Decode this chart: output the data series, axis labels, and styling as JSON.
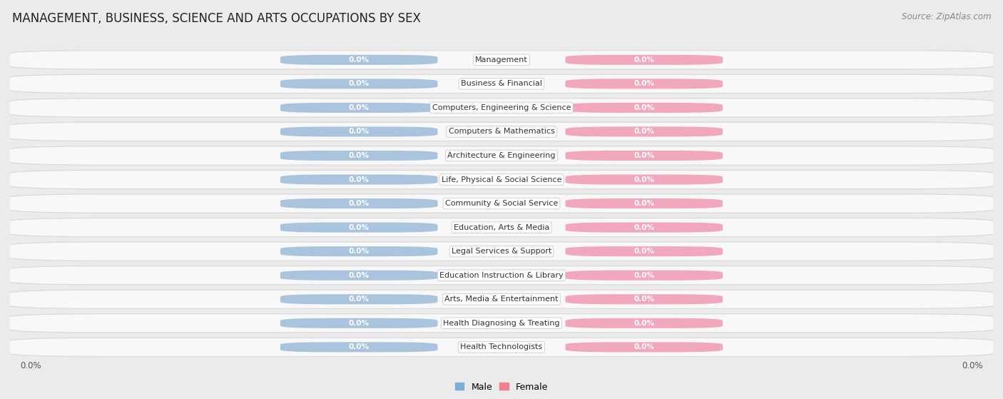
{
  "title": "MANAGEMENT, BUSINESS, SCIENCE AND ARTS OCCUPATIONS BY SEX",
  "source": "Source: ZipAtlas.com",
  "categories": [
    "Management",
    "Business & Financial",
    "Computers, Engineering & Science",
    "Computers & Mathematics",
    "Architecture & Engineering",
    "Life, Physical & Social Science",
    "Community & Social Service",
    "Education, Arts & Media",
    "Legal Services & Support",
    "Education Instruction & Library",
    "Arts, Media & Entertainment",
    "Health Diagnosing & Treating",
    "Health Technologists"
  ],
  "male_values": [
    0.0,
    0.0,
    0.0,
    0.0,
    0.0,
    0.0,
    0.0,
    0.0,
    0.0,
    0.0,
    0.0,
    0.0,
    0.0
  ],
  "female_values": [
    0.0,
    0.0,
    0.0,
    0.0,
    0.0,
    0.0,
    0.0,
    0.0,
    0.0,
    0.0,
    0.0,
    0.0,
    0.0
  ],
  "male_color": "#aac4de",
  "female_color": "#f2a8bc",
  "background_color": "#ebebeb",
  "row_bg_color": "#f8f8f8",
  "row_edge_color": "#d8d8d8",
  "title_fontsize": 12,
  "source_fontsize": 8.5,
  "category_fontsize": 8,
  "value_label_fontsize": 7.5,
  "legend_male_color": "#7aafd4",
  "legend_female_color": "#f08090",
  "axis_label_fontsize": 8.5
}
